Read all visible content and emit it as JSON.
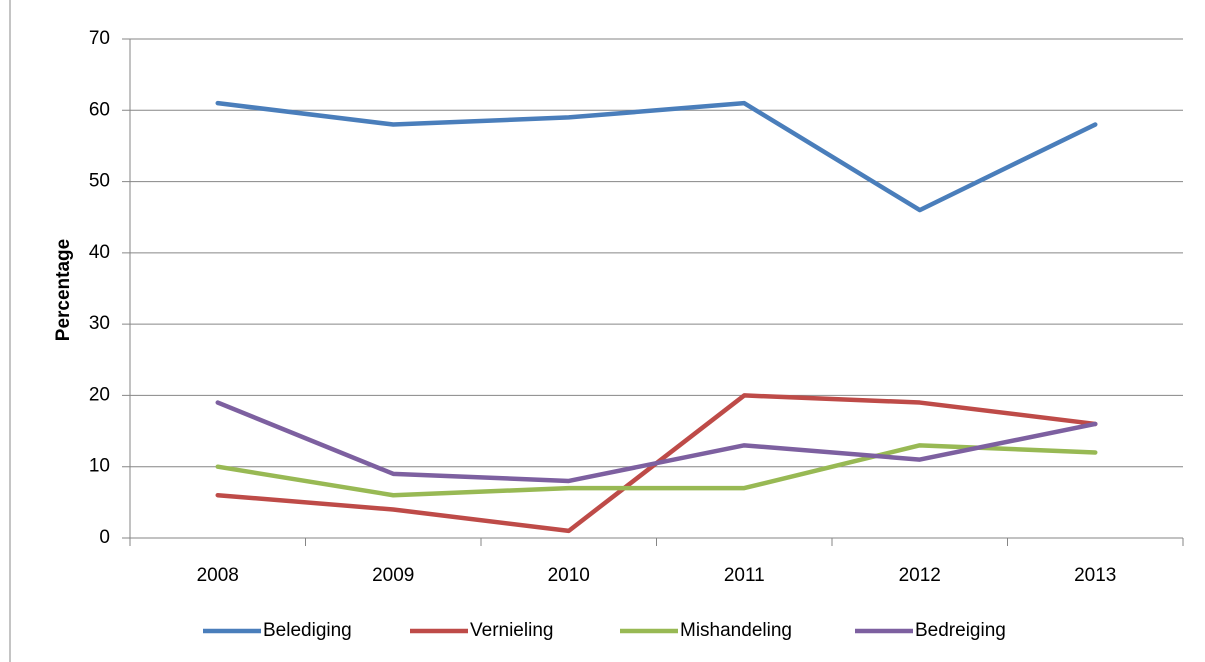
{
  "chart_data": {
    "type": "line",
    "y_label": "Percentage",
    "categories": [
      "2008",
      "2009",
      "2010",
      "2011",
      "2012",
      "2013"
    ],
    "series": [
      {
        "name": "Belediging",
        "color": "#4a7ebb",
        "values": [
          61,
          58,
          59,
          61,
          46,
          58
        ]
      },
      {
        "name": "Vernieling",
        "color": "#be4b48",
        "values": [
          6,
          4,
          1,
          20,
          19,
          16
        ]
      },
      {
        "name": "Mishandeling",
        "color": "#98b954",
        "values": [
          10,
          6,
          7,
          7,
          13,
          12
        ]
      },
      {
        "name": "Bedreiging",
        "color": "#7d60a0",
        "values": [
          19,
          9,
          8,
          13,
          11,
          16
        ]
      }
    ],
    "ylim": [
      0,
      70
    ],
    "yticks": [
      0,
      10,
      20,
      30,
      40,
      50,
      60,
      70
    ],
    "grid": true,
    "legend": "bottom"
  }
}
